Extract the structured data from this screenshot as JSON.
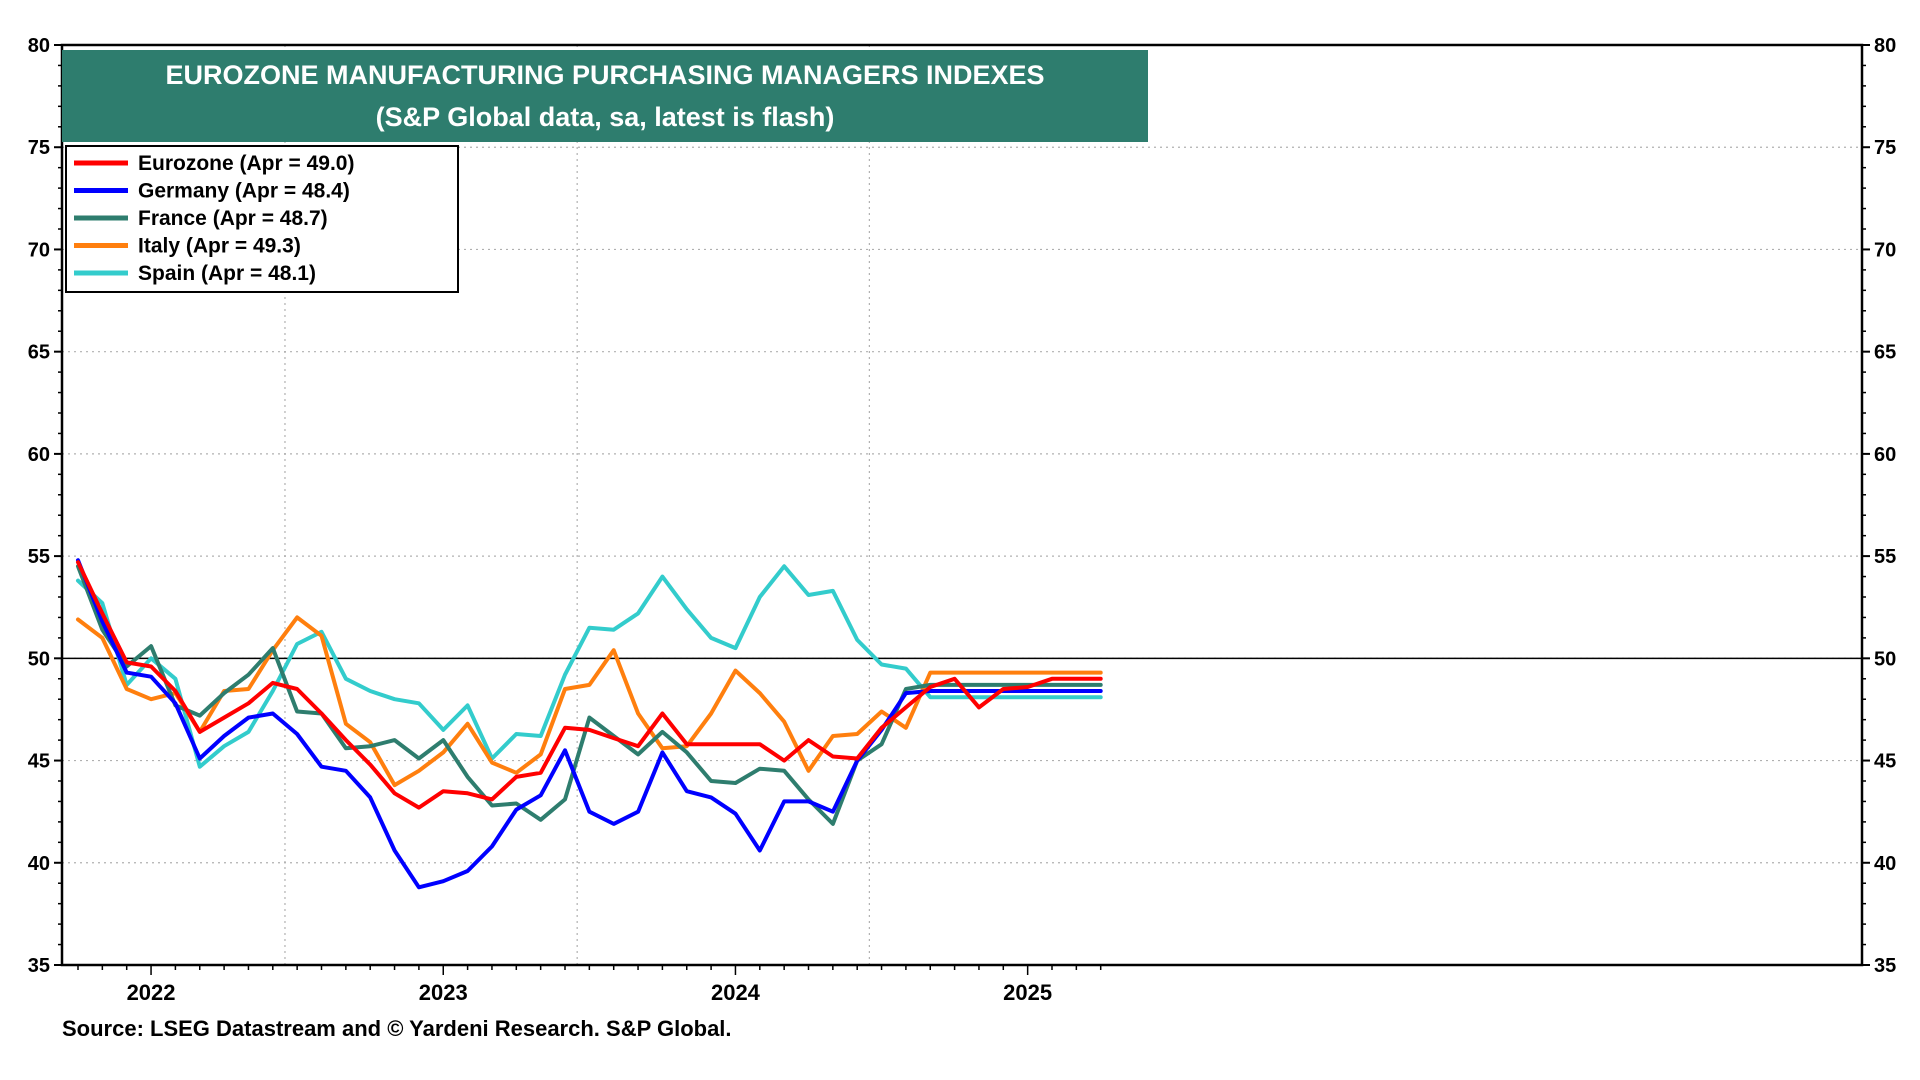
{
  "chart_data": {
    "type": "line",
    "title": "EUROZONE MANUFACTURING PURCHASING MANAGERS INDEXES",
    "subtitle": "(S&P Global data, sa, latest is flash)",
    "ylim": [
      35,
      80
    ],
    "yticks": [
      35,
      40,
      45,
      50,
      55,
      60,
      65,
      70,
      75,
      80
    ],
    "reference_line": 50,
    "x": [
      "2021-10",
      "2021-11",
      "2021-12",
      "2022-01",
      "2022-02",
      "2022-03",
      "2022-04",
      "2022-05",
      "2022-06",
      "2022-07",
      "2022-08",
      "2022-09",
      "2022-10",
      "2022-11",
      "2022-12",
      "2023-01",
      "2023-02",
      "2023-03",
      "2023-04",
      "2023-05",
      "2023-06",
      "2023-07",
      "2023-08",
      "2023-09",
      "2023-10",
      "2023-11",
      "2023-12",
      "2024-01",
      "2024-02",
      "2024-03",
      "2024-04",
      "2024-05",
      "2024-06",
      "2024-07",
      "2024-08",
      "2024-09",
      "2024-10",
      "2024-11",
      "2024-12",
      "2025-01",
      "2025-02",
      "2025-03",
      "2025-04"
    ],
    "x_tick_labels": [
      "2022",
      "2023",
      "2024",
      "2025"
    ],
    "x_tick_positions": [
      "2022-01",
      "2023-01",
      "2024-01",
      "2025-01"
    ],
    "grid": true,
    "legend_position": "top-left",
    "series": [
      {
        "name": "Eurozone (Apr  = 49.0)",
        "color": "#ff0000",
        "values": [
          54.7,
          52.2,
          49.8,
          49.6,
          48.4,
          46.4,
          47.1,
          47.8,
          48.8,
          48.5,
          47.3,
          46.0,
          44.8,
          43.4,
          42.7,
          43.5,
          43.4,
          43.1,
          44.2,
          44.4,
          46.6,
          46.5,
          46.1,
          45.7,
          47.3,
          45.8,
          45.8,
          45.8,
          45.8,
          45.0,
          46.0,
          45.2,
          45.1,
          46.6,
          47.6,
          48.6,
          49.0,
          47.6,
          48.5,
          48.6,
          49.0,
          49.0,
          49.0
        ]
      },
      {
        "name": "Germany (Apr  = 48.4)",
        "color": "#0000ff",
        "values": [
          54.8,
          51.8,
          49.3,
          49.1,
          47.8,
          45.1,
          46.2,
          47.1,
          47.3,
          46.3,
          44.7,
          44.5,
          43.2,
          40.6,
          38.8,
          39.1,
          39.6,
          40.8,
          42.6,
          43.3,
          45.5,
          42.5,
          41.9,
          42.5,
          45.4,
          43.5,
          43.2,
          42.4,
          40.6,
          43.0,
          43.0,
          42.5,
          45.0,
          46.5,
          48.3,
          48.4,
          48.4,
          48.4,
          48.4,
          48.4,
          48.4,
          48.4,
          48.4
        ]
      },
      {
        "name": "France (Apr  = 48.7)",
        "color": "#2e7d6e",
        "values": [
          54.5,
          51.4,
          49.6,
          50.6,
          47.7,
          47.2,
          48.3,
          49.2,
          50.5,
          47.4,
          47.3,
          45.6,
          45.7,
          46.0,
          45.1,
          46.0,
          44.2,
          42.8,
          42.9,
          42.1,
          43.1,
          47.1,
          46.2,
          45.3,
          46.4,
          45.4,
          44.0,
          43.9,
          44.6,
          44.5,
          43.1,
          41.9,
          45.0,
          45.8,
          48.5,
          48.7,
          48.7,
          48.7,
          48.7,
          48.7,
          48.7,
          48.7,
          48.7
        ]
      },
      {
        "name": "Italy (Apr  = 49.3)",
        "color": "#ff7f0e",
        "values": [
          51.9,
          51.0,
          48.5,
          48.0,
          48.3,
          46.4,
          48.4,
          48.5,
          50.4,
          52.0,
          51.1,
          46.8,
          45.9,
          43.8,
          44.5,
          45.4,
          46.8,
          44.9,
          44.4,
          45.3,
          48.5,
          48.7,
          50.4,
          47.3,
          45.6,
          45.7,
          47.3,
          49.4,
          48.3,
          46.9,
          44.5,
          46.2,
          46.3,
          47.4,
          46.6,
          49.3,
          49.3,
          49.3,
          49.3,
          49.3,
          49.3,
          49.3,
          49.3
        ]
      },
      {
        "name": "Spain (Apr  = 48.1)",
        "color": "#33cccc",
        "values": [
          53.8,
          52.7,
          48.7,
          50.0,
          49.0,
          44.7,
          45.7,
          46.4,
          48.4,
          50.7,
          51.3,
          49.0,
          48.4,
          48.0,
          47.8,
          46.5,
          47.7,
          45.1,
          46.3,
          46.2,
          49.2,
          51.5,
          51.4,
          52.2,
          54.0,
          52.4,
          51.0,
          50.5,
          53.0,
          54.5,
          53.1,
          53.3,
          50.9,
          49.7,
          49.5,
          48.1,
          48.1,
          48.1,
          48.1,
          48.1,
          48.1,
          48.1,
          48.1
        ]
      }
    ]
  },
  "footer": {
    "source": "Source: LSEG Datastream and © Yardeni Research. S&P Global."
  }
}
